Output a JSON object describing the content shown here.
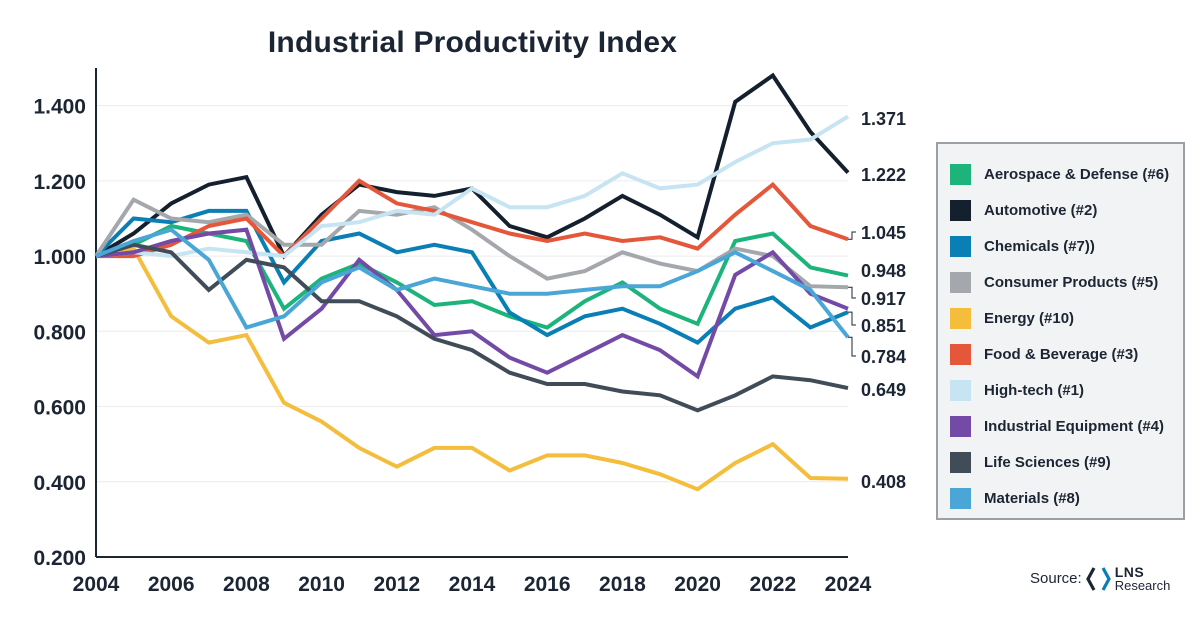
{
  "chart_data": {
    "type": "line",
    "title": "Industrial Productivity Index",
    "xlabel": "",
    "ylabel": "",
    "ylim": [
      0.2,
      1.5
    ],
    "yticks": [
      "0.200",
      "0.400",
      "0.600",
      "0.800",
      "1.000",
      "1.200",
      "1.400"
    ],
    "ytick_values": [
      0.2,
      0.4,
      0.6,
      0.8,
      1.0,
      1.2,
      1.4
    ],
    "xticks": [
      "2004",
      "2006",
      "2008",
      "2010",
      "2012",
      "2014",
      "2016",
      "2018",
      "2020",
      "2022",
      "2024"
    ],
    "x": [
      2004,
      2005,
      2006,
      2007,
      2008,
      2009,
      2010,
      2011,
      2012,
      2013,
      2014,
      2015,
      2016,
      2017,
      2018,
      2019,
      2020,
      2021,
      2022,
      2023,
      2024
    ],
    "grid": "horizontal",
    "legend_position": "right",
    "series": [
      {
        "name": "Aerospace & Defense (#6)",
        "color": "#1db47c",
        "end_label": "0.948",
        "values": [
          1.0,
          1.03,
          1.08,
          1.06,
          1.04,
          0.86,
          0.94,
          0.98,
          0.93,
          0.87,
          0.88,
          0.84,
          0.81,
          0.88,
          0.93,
          0.86,
          0.82,
          1.04,
          1.06,
          0.97,
          0.948
        ]
      },
      {
        "name": "Automotive (#2)",
        "color": "#14202e",
        "end_label": "1.222",
        "values": [
          1.0,
          1.06,
          1.14,
          1.19,
          1.21,
          1.0,
          1.11,
          1.19,
          1.17,
          1.16,
          1.18,
          1.08,
          1.05,
          1.1,
          1.16,
          1.11,
          1.05,
          1.41,
          1.48,
          1.33,
          1.222
        ]
      },
      {
        "name": "Chemicals (#7))",
        "color": "#0a7fb5",
        "end_label": "0.851",
        "values": [
          1.0,
          1.1,
          1.09,
          1.12,
          1.12,
          0.93,
          1.04,
          1.06,
          1.01,
          1.03,
          1.01,
          0.85,
          0.79,
          0.84,
          0.86,
          0.82,
          0.77,
          0.86,
          0.89,
          0.81,
          0.851
        ]
      },
      {
        "name": "Consumer Products (#5)",
        "color": "#a4a7ab",
        "end_label": "0.917",
        "values": [
          1.0,
          1.15,
          1.1,
          1.09,
          1.11,
          1.03,
          1.03,
          1.12,
          1.11,
          1.13,
          1.07,
          1.0,
          0.94,
          0.96,
          1.01,
          0.98,
          0.96,
          1.02,
          1.0,
          0.92,
          0.917
        ]
      },
      {
        "name": "Energy (#10)",
        "color": "#f4bd3b",
        "end_label": "0.408",
        "values": [
          1.0,
          1.02,
          0.84,
          0.77,
          0.79,
          0.61,
          0.56,
          0.49,
          0.44,
          0.49,
          0.49,
          0.43,
          0.47,
          0.47,
          0.45,
          0.42,
          0.38,
          0.45,
          0.5,
          0.41,
          0.408
        ]
      },
      {
        "name": "Food & Beverage (#3)",
        "color": "#e4573a",
        "end_label": "1.045",
        "values": [
          1.0,
          1.0,
          1.03,
          1.08,
          1.1,
          1.0,
          1.1,
          1.2,
          1.14,
          1.12,
          1.09,
          1.06,
          1.04,
          1.06,
          1.04,
          1.05,
          1.02,
          1.11,
          1.19,
          1.08,
          1.045
        ]
      },
      {
        "name": "High-tech (#1)",
        "color": "#c7e4f2",
        "end_label": "1.371",
        "values": [
          1.0,
          1.01,
          1.0,
          1.02,
          1.01,
          1.0,
          1.08,
          1.09,
          1.12,
          1.11,
          1.18,
          1.13,
          1.13,
          1.16,
          1.22,
          1.18,
          1.19,
          1.25,
          1.3,
          1.31,
          1.371
        ]
      },
      {
        "name": "Industrial Equipment (#4)",
        "color": "#744aa7",
        "end_label": "",
        "values": [
          1.0,
          1.01,
          1.04,
          1.06,
          1.07,
          0.78,
          0.86,
          0.99,
          0.91,
          0.79,
          0.8,
          0.73,
          0.69,
          0.74,
          0.79,
          0.75,
          0.68,
          0.95,
          1.01,
          0.9,
          0.86
        ]
      },
      {
        "name": "Life Sciences (#9)",
        "color": "#404c58",
        "end_label": "0.649",
        "values": [
          1.0,
          1.03,
          1.01,
          0.91,
          0.99,
          0.97,
          0.88,
          0.88,
          0.84,
          0.78,
          0.75,
          0.69,
          0.66,
          0.66,
          0.64,
          0.63,
          0.59,
          0.63,
          0.68,
          0.67,
          0.649
        ]
      },
      {
        "name": "Materials (#8)",
        "color": "#4aa6d6",
        "end_label": "0.784",
        "values": [
          1.0,
          1.04,
          1.07,
          0.99,
          0.81,
          0.84,
          0.93,
          0.97,
          0.91,
          0.94,
          0.92,
          0.9,
          0.9,
          0.91,
          0.92,
          0.92,
          0.96,
          1.01,
          0.96,
          0.91,
          0.784
        ]
      }
    ]
  },
  "source": {
    "label": "Source:",
    "brand_name": "LNS",
    "brand_sub": "Research"
  }
}
